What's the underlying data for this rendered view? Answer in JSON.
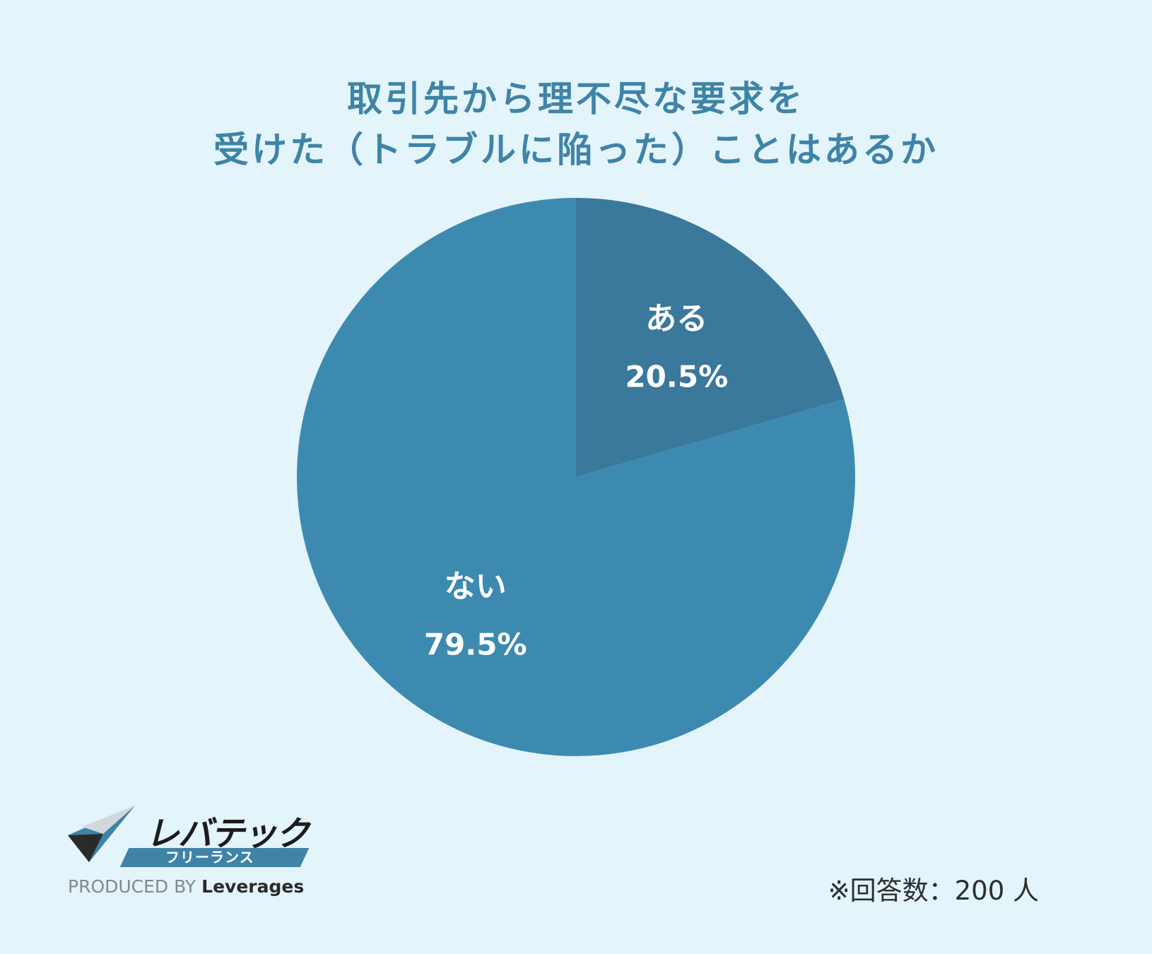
{
  "title": {
    "line1": "取引先から理不尽な要求を",
    "line2": "受けた（トラブルに陥った）ことはあるか"
  },
  "chart_data": {
    "type": "pie",
    "title": "取引先から理不尽な要求を受けた（トラブルに陥った）ことはあるか",
    "categories": [
      "ある",
      "ない"
    ],
    "values": [
      20.5,
      79.5
    ],
    "value_labels": [
      "20.5%",
      "79.5%"
    ],
    "unit": "%",
    "colors": [
      "#3a789c",
      "#3d8ab0"
    ],
    "start": "12 o'clock",
    "direction": "clockwise"
  },
  "note": "※回答数：200 人",
  "logo": {
    "brand": "レバテック",
    "sub": "フリーランス",
    "produced_prefix": "PRODUCED BY",
    "produced_brand": "Leverages"
  },
  "colors": {
    "background": "#e3f4fa",
    "title": "#3f84a7",
    "accent": "#3f84a7"
  }
}
